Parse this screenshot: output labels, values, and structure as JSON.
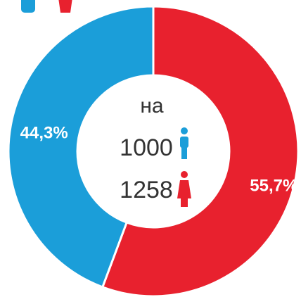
{
  "chart_data": {
    "type": "pie",
    "values": [
      55.7,
      44.3
    ],
    "value_labels": [
      "55,7%",
      "44,3%"
    ],
    "colors": [
      "#e8212e",
      "#1b9ed9"
    ],
    "center_text": [
      "на",
      "1000",
      "1258"
    ]
  }
}
